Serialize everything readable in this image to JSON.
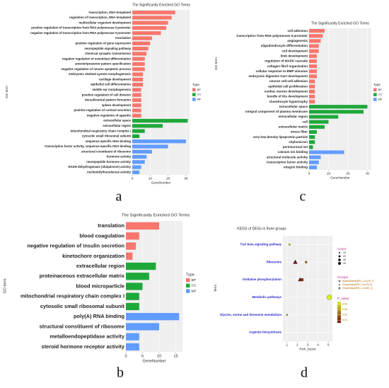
{
  "chart_data": [
    {
      "type": "bar",
      "panel": "a",
      "title": "The Significantly Enriched GO Terms",
      "xlabel": "GeneNumber",
      "ylabel": "GO term",
      "categories": [
        "transcription, DNA-templated",
        "regulation of transcription, DNA-templated",
        "multicellular organism development",
        "positive regulation of transcription from RNA polymerase II promoter",
        "negative regulation of transcription from RNA polymerase II promoter",
        "translation",
        "positive regulation of gene expression",
        "neuropeptide signaling pathway",
        "chemical synaptic transmission",
        "negative regulation of osteoblast differentiation",
        "anterior/posterior pattern specification",
        "negative regulation of neuron apoptotic process",
        "embryonic skeletal system morphogenesis",
        "cartilage development",
        "epithelial cell differentiation",
        "middle ear morphogenesis",
        "positive regulation of cell division",
        "dorsal/ventral pattern formation",
        "spleen development",
        "positive regulation of cortisol secretion",
        "negative regulation of appetite",
        "extracellular space",
        "extracellular region",
        "mitochondrial respiratory chain complex I",
        "cytosolic small ribosomal subunit",
        "sequence-specific DNA binding",
        "transcription factor activity, sequence-specific DNA binding",
        "structural constituent of ribosome",
        "hormone activity",
        "neuropeptide hormone activity",
        "NADH dehydrogenase (ubiquinone) activity",
        "nucleotidyltransferase activity"
      ],
      "values": [
        24,
        22,
        20,
        19,
        16,
        11,
        10,
        9,
        8,
        7,
        7,
        7,
        6,
        6,
        6,
        5,
        5,
        5,
        5,
        5,
        5,
        31,
        17,
        7,
        4,
        30,
        20,
        11,
        8,
        7,
        5,
        4
      ],
      "types": [
        "BP",
        "BP",
        "BP",
        "BP",
        "BP",
        "BP",
        "BP",
        "BP",
        "BP",
        "BP",
        "BP",
        "BP",
        "BP",
        "BP",
        "BP",
        "BP",
        "BP",
        "BP",
        "BP",
        "BP",
        "BP",
        "CC",
        "CC",
        "CC",
        "CC",
        "MF",
        "MF",
        "MF",
        "MF",
        "MF",
        "MF",
        "MF"
      ],
      "legend_title": "Type",
      "legend": [
        {
          "name": "BP",
          "color": "#f8766d"
        },
        {
          "name": "CC",
          "color": "#1ea83a"
        },
        {
          "name": "MF",
          "color": "#619cff"
        }
      ],
      "xlim": [
        0,
        32
      ],
      "xticks": [
        0,
        10,
        20,
        30
      ],
      "grid": true
    },
    {
      "type": "bar",
      "panel": "b",
      "title": "The Significantly Enriched GO Terms",
      "xlabel": "GeneNumber",
      "ylabel": "GO term",
      "categories": [
        "translation",
        "blood coagulation",
        "negative regulation of insulin secretion",
        "kinetochore organization",
        "extracellular region",
        "proteinaceous extracellular matrix",
        "blood microparticle",
        "mitochondrial respiratory chain complex I",
        "cytosolic small ribosomal subunit",
        "poly(A) RNA binding",
        "structural constituent of ribosome",
        "metalloendopeptidase activity",
        "steroid hormone receptor activity"
      ],
      "values": [
        10,
        4,
        3,
        2,
        9,
        7,
        5,
        4,
        4,
        16,
        10,
        4,
        4
      ],
      "types": [
        "BP",
        "BP",
        "BP",
        "BP",
        "CC",
        "CC",
        "CC",
        "CC",
        "CC",
        "MF",
        "MF",
        "MF",
        "MF"
      ],
      "legend_title": "Type",
      "legend": [
        {
          "name": "BP",
          "color": "#f8766d"
        },
        {
          "name": "CC",
          "color": "#1ea83a"
        },
        {
          "name": "MF",
          "color": "#619cff"
        }
      ],
      "xlim": [
        0,
        17
      ],
      "xticks": [
        0,
        5,
        10,
        15
      ],
      "grid": true
    },
    {
      "type": "bar",
      "panel": "c",
      "title": "The Significantly Enriched GO Terms",
      "xlabel": "GeneNumber",
      "ylabel": "GO term",
      "categories": [
        "cell adhesion",
        "transcription from RNA polymerase II promoter",
        "angiogenesis",
        "oligodendrocyte differentiation",
        "cell development",
        "limb development",
        "regulation of MAPK cascade",
        "collagen fibril organization",
        "cellular response to BMP stimulus",
        "embryonic digestive tract development",
        "neuron cell-cell adhesion",
        "epithelial cell proliferation",
        "cardiac neuron development",
        "bundle of His development",
        "chondrocyte hypertrophy",
        "extracellular space",
        "integral component of plasma membrane",
        "extracellular region",
        "cell",
        "extracellular matrix",
        "stress fiber",
        "very-low-density lipoprotein particle",
        "chylomicron",
        "perineuronal net",
        "calcium ion binding",
        "structural molecule activity",
        "transcription factor activity",
        "integrin binding"
      ],
      "values": [
        8,
        7,
        6,
        5,
        5,
        4,
        4,
        4,
        4,
        4,
        3,
        3,
        3,
        3,
        3,
        30,
        28,
        15,
        10,
        8,
        4,
        3,
        3,
        2,
        18,
        6,
        5,
        4
      ],
      "types": [
        "BP",
        "BP",
        "BP",
        "BP",
        "BP",
        "BP",
        "BP",
        "BP",
        "BP",
        "BP",
        "BP",
        "BP",
        "BP",
        "BP",
        "BP",
        "CC",
        "CC",
        "CC",
        "CC",
        "CC",
        "CC",
        "CC",
        "CC",
        "CC",
        "MF",
        "MF",
        "MF",
        "MF"
      ],
      "legend_title": "Type",
      "legend": [
        {
          "name": "BP",
          "color": "#f8766d"
        },
        {
          "name": "CC",
          "color": "#1ea83a"
        },
        {
          "name": "MF",
          "color": "#619cff"
        }
      ],
      "xlim": [
        0,
        32
      ],
      "xticks": [
        0,
        10,
        20,
        30
      ],
      "grid": true
    },
    {
      "type": "scatter",
      "panel": "d",
      "title": "KEGG of DEGs in three groups",
      "xlabel": "Rich_factor",
      "ylabel": "Term",
      "categories": [
        "TGF-beta signaling pathway",
        "Ribosome",
        "Oxidative phosphorylation",
        "Metabolic pathways",
        "Glycine, serine and threonine metabolism",
        "Arginine biosynthesis"
      ],
      "series": [
        {
          "name": "HyperMaternal(FM_1-vs-FM_2)",
          "shape": "circle",
          "x": [
            1.25,
            2.85,
            5.1
          ],
          "terms": [
            "TGF-beta signaling pathway",
            "Ribosome",
            "Metabolic pathways"
          ],
          "counts": [
            5,
            8,
            40
          ],
          "p_values": [
            0.035,
            0.02,
            0.045
          ]
        },
        {
          "name": "OvaryUnique(FM_1-vs-FM_2)",
          "shape": "triangle",
          "x": [
            1.8,
            2.25
          ],
          "terms": [
            "Ribosome",
            "Oxidative phosphorylation"
          ],
          "counts": [
            25,
            20
          ],
          "p_values": [
            0.005,
            0.008
          ]
        },
        {
          "name": "OvaryUnique(FM_1-vs-NM_2)",
          "shape": "square",
          "x": [
            2.45,
            1.0
          ],
          "terms": [
            "Oxidative phosphorylation",
            "Glycine, serine and threonine metabolism"
          ],
          "counts": [
            12,
            3
          ],
          "p_values": [
            0.01,
            0.03
          ]
        }
      ],
      "size_legend_title": "Count",
      "size_legend": [
        10,
        20,
        30,
        40
      ],
      "groups_title": "Groups",
      "color_legend_title": "P_value",
      "color_ticks": [
        0.04,
        0.03,
        0.02,
        0.01
      ],
      "clim": [
        0.005,
        0.045
      ],
      "colormap": [
        "#7a0c0c",
        "#d6ec1c"
      ],
      "xlim": [
        0.6,
        5.4
      ],
      "xticks": [
        1,
        2,
        3,
        4,
        5
      ],
      "grid": true
    }
  ]
}
